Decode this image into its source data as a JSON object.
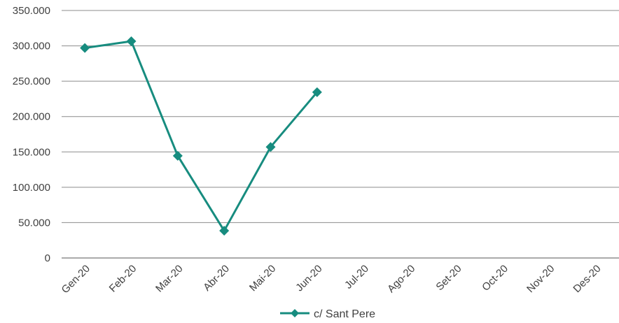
{
  "chart_data": {
    "type": "line",
    "categories": [
      "Gen-20",
      "Feb-20",
      "Mar-20",
      "Abr-20",
      "Mai-20",
      "Jun-20",
      "Jul-20",
      "Ago-20",
      "Set-20",
      "Oct-20",
      "Nov-20",
      "Des-20"
    ],
    "series": [
      {
        "name": "c/ Sant Pere",
        "color": "#178c7f",
        "values": [
          297000,
          306500,
          144500,
          38500,
          157000,
          234500,
          null,
          null,
          null,
          null,
          null,
          null
        ]
      }
    ],
    "ylim": [
      0,
      350000
    ],
    "yticks": [
      0,
      {
        "value": 50000,
        "label": "50.000"
      },
      {
        "value": 100000,
        "label": "100.000"
      },
      {
        "value": 150000,
        "label": "150.000"
      },
      {
        "value": 200000,
        "label": "200.000"
      },
      {
        "value": 250000,
        "label": "250.000"
      },
      {
        "value": 300000,
        "label": "300.000"
      },
      {
        "value": 350000,
        "label": "350.000"
      }
    ],
    "grid": true,
    "legend": "bottom"
  }
}
